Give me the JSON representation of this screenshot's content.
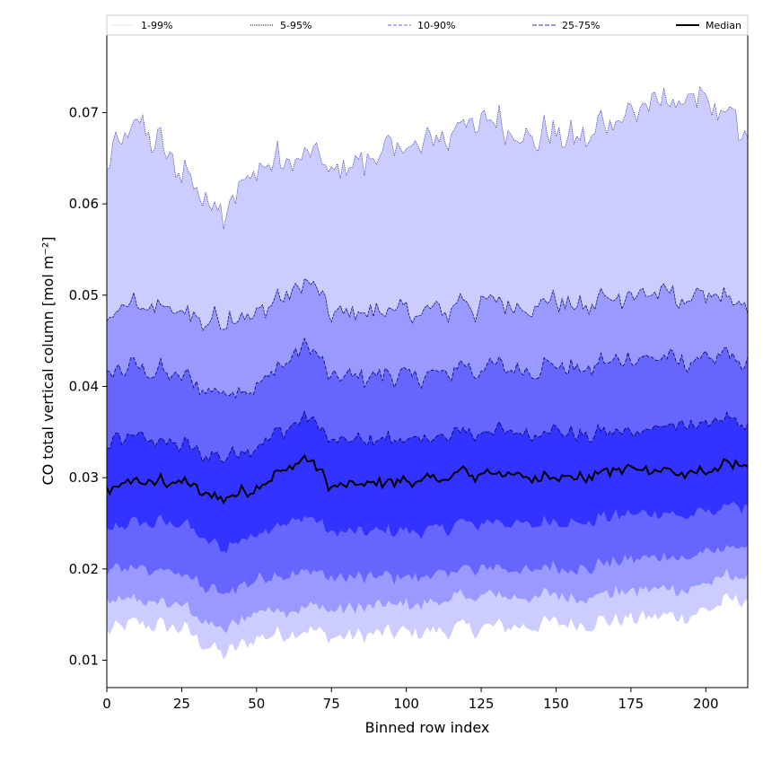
{
  "chart_data": {
    "type": "area",
    "xlabel": "Binned row index",
    "ylabel": "CO total vertical column [mol m⁻²]",
    "xlim": [
      0,
      214
    ],
    "ylim": [
      0.007,
      0.0785
    ],
    "x_ticks": [
      0,
      25,
      50,
      75,
      100,
      125,
      150,
      175,
      200
    ],
    "y_ticks": [
      0.01,
      0.02,
      0.03,
      0.04,
      0.05,
      0.06,
      0.07
    ],
    "grid": false,
    "legend_position": "top",
    "n_rows": 215,
    "legend": [
      {
        "label": "1-99%",
        "color": "#ccccff",
        "style": "dotted"
      },
      {
        "label": "5-95%",
        "color": "#000099",
        "style": "dotted"
      },
      {
        "label": "10-90%",
        "color": "#6666ff",
        "style": "dashed"
      },
      {
        "label": "25-75%",
        "color": "#3333cc",
        "style": "dashdot"
      },
      {
        "label": "Median",
        "color": "#000000",
        "style": "solid"
      }
    ],
    "band_colors": {
      "p1_99": "#ccccff",
      "p5_95": "#9999ff",
      "p10_90": "#6666ff",
      "p25_75": "#3333ff"
    },
    "series_profiles": {
      "x": [
        0,
        10,
        25,
        39,
        50,
        66,
        75,
        100,
        125,
        150,
        175,
        195,
        214
      ],
      "p99": [
        0.064,
        0.069,
        0.0635,
        0.059,
        0.064,
        0.066,
        0.0635,
        0.066,
        0.069,
        0.067,
        0.07,
        0.072,
        0.068
      ],
      "p95": [
        0.047,
        0.049,
        0.048,
        0.047,
        0.048,
        0.052,
        0.048,
        0.048,
        0.049,
        0.049,
        0.05,
        0.05,
        0.049
      ],
      "p90": [
        0.041,
        0.042,
        0.041,
        0.039,
        0.04,
        0.045,
        0.041,
        0.041,
        0.042,
        0.042,
        0.043,
        0.043,
        0.043
      ],
      "p75": [
        0.0335,
        0.0345,
        0.0335,
        0.032,
        0.0335,
        0.037,
        0.034,
        0.034,
        0.035,
        0.035,
        0.035,
        0.036,
        0.036
      ],
      "median": [
        0.0285,
        0.0295,
        0.0295,
        0.0275,
        0.029,
        0.0325,
        0.029,
        0.0295,
        0.0305,
        0.03,
        0.031,
        0.0305,
        0.0315
      ],
      "p25": [
        0.024,
        0.025,
        0.025,
        0.022,
        0.024,
        0.026,
        0.024,
        0.024,
        0.025,
        0.025,
        0.026,
        0.026,
        0.027
      ],
      "p10": [
        0.0195,
        0.02,
        0.0195,
        0.017,
        0.019,
        0.02,
        0.019,
        0.019,
        0.02,
        0.02,
        0.021,
        0.0215,
        0.0225
      ],
      "p5": [
        0.016,
        0.0165,
        0.016,
        0.013,
        0.0155,
        0.016,
        0.0155,
        0.016,
        0.017,
        0.017,
        0.0175,
        0.018,
        0.0195
      ],
      "p1": [
        0.013,
        0.014,
        0.0135,
        0.0105,
        0.0125,
        0.0135,
        0.0125,
        0.013,
        0.0135,
        0.014,
        0.0145,
        0.015,
        0.017
      ]
    }
  }
}
